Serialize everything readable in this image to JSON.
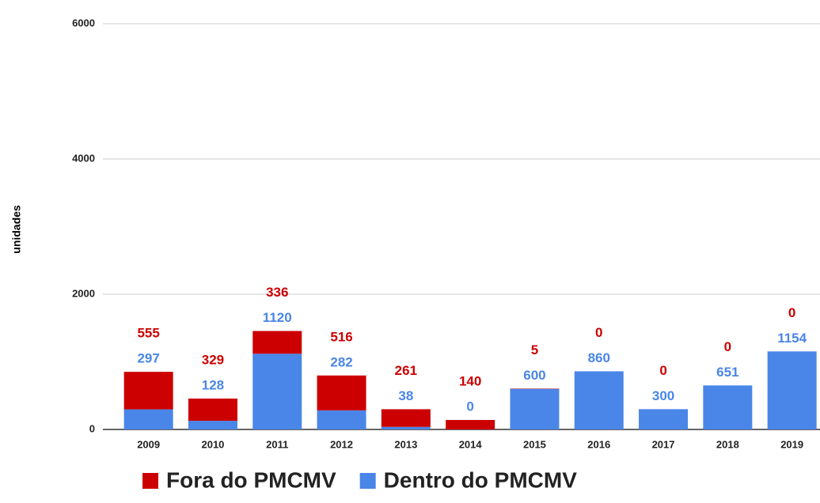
{
  "chart_data": {
    "type": "stacked_bar",
    "y_label": "unidades",
    "categories": [
      "2009",
      "2010",
      "2011",
      "2012",
      "2013",
      "2014",
      "2015",
      "2016",
      "2017",
      "2018",
      "2019"
    ],
    "series": [
      {
        "name": "Dentro do PMCMV",
        "color": "#4a86e8",
        "values": [
          297,
          128,
          1120,
          282,
          38,
          0,
          600,
          860,
          300,
          651,
          1154
        ]
      },
      {
        "name": "Fora do PMCMV",
        "color": "#cc0000",
        "values": [
          555,
          329,
          336,
          516,
          261,
          140,
          5,
          0,
          0,
          0,
          0
        ]
      }
    ],
    "legend_order": [
      1,
      0
    ],
    "ylim": [
      0,
      6000
    ],
    "yticks": [
      0,
      2000,
      4000,
      6000
    ],
    "grid": true,
    "legend": "bottom"
  }
}
